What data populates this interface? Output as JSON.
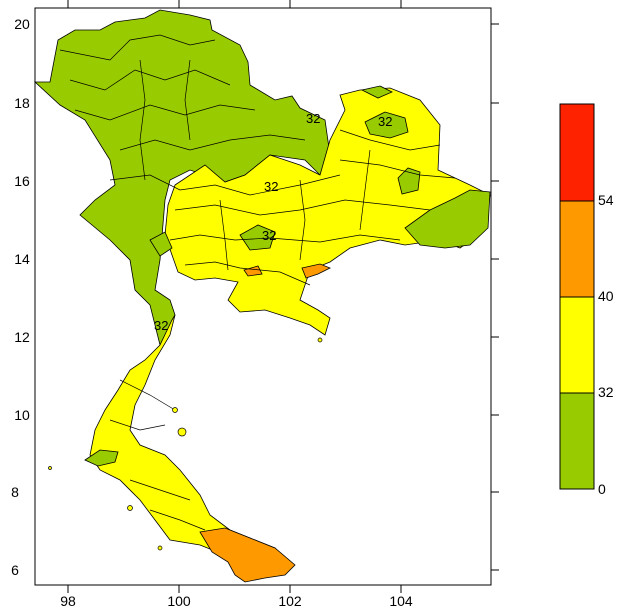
{
  "map": {
    "x_ticks": [
      "98",
      "100",
      "102",
      "104"
    ],
    "y_ticks": [
      "20",
      "18",
      "16",
      "14",
      "12",
      "10",
      "8",
      "6"
    ],
    "x_range": [
      97.4,
      105.6
    ],
    "y_range": [
      5.75,
      20.4
    ],
    "contour_labels": [
      "32",
      "32",
      "32",
      "32",
      "32"
    ]
  },
  "legend": {
    "bins": [
      {
        "from": "0",
        "to": "32",
        "color": "#99cc00"
      },
      {
        "from": "32",
        "to": "40",
        "color": "#ffff00"
      },
      {
        "from": "40",
        "to": "54",
        "color": "#ff9900"
      },
      {
        "from": "54",
        "to": "",
        "color": "#ff2200"
      }
    ],
    "labels": [
      "54",
      "40",
      "32",
      "0"
    ]
  },
  "colors": {
    "low": "#99cc00",
    "mid": "#ffff00",
    "high": "#ff9900",
    "max": "#ff2200",
    "border": "#000000"
  }
}
